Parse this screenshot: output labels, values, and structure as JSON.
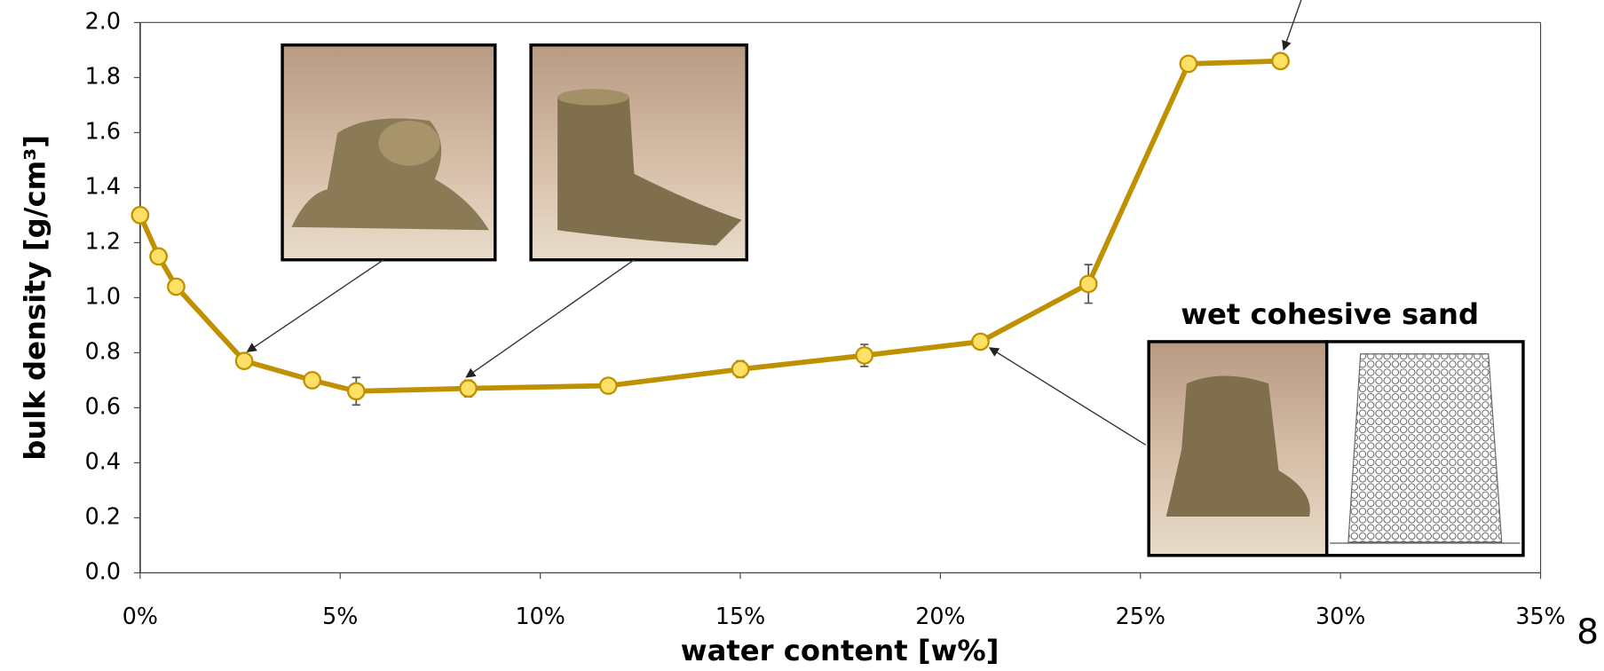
{
  "chart_data": {
    "type": "line",
    "x_label": "water content  [w%]",
    "y_label": "bulk density [g/cm³]",
    "annotation": "wet cohesive sand",
    "page_number": "8",
    "x": [
      0,
      0.46,
      0.9,
      2.6,
      4.3,
      5.4,
      8.2,
      11.7,
      15.0,
      18.1,
      21.0,
      23.7,
      26.2,
      28.5
    ],
    "values": [
      1.3,
      1.15,
      1.04,
      0.77,
      0.7,
      0.66,
      0.67,
      0.68,
      0.74,
      0.79,
      0.84,
      1.05,
      1.85,
      1.86
    ],
    "errors": [
      0,
      0,
      0,
      0,
      0.01,
      0.05,
      0.03,
      0.01,
      0.03,
      0.04,
      0.01,
      0.07,
      0,
      0
    ],
    "color": "#bf9000",
    "marker_color": "#ffe066",
    "xlim": [
      0,
      35
    ],
    "ylim": [
      0,
      2
    ],
    "xticks": [
      {
        "value": 0,
        "label": "0%"
      },
      {
        "value": 5,
        "label": "5%"
      },
      {
        "value": 10,
        "label": "10%"
      },
      {
        "value": 15,
        "label": "15%"
      },
      {
        "value": 20,
        "label": "20%"
      },
      {
        "value": 25,
        "label": "25%"
      },
      {
        "value": 30,
        "label": "30%"
      },
      {
        "value": 35,
        "label": "35%"
      }
    ],
    "yticks": [
      {
        "value": 0,
        "label": "0.0"
      },
      0.2,
      0.4,
      0.6,
      0.8,
      {
        "value": 1,
        "label": "1.0"
      },
      1.2,
      1.4,
      1.6,
      1.8,
      {
        "value": 2,
        "label": "2.0"
      }
    ],
    "grid": false
  }
}
